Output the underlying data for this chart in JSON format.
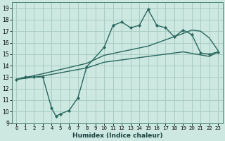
{
  "xlabel": "Humidex (Indice chaleur)",
  "xlim": [
    -0.5,
    23.5
  ],
  "ylim": [
    9,
    19.5
  ],
  "xticks": [
    0,
    1,
    2,
    3,
    4,
    5,
    6,
    7,
    8,
    9,
    10,
    11,
    12,
    13,
    14,
    15,
    16,
    17,
    18,
    19,
    20,
    21,
    22,
    23
  ],
  "yticks": [
    9,
    10,
    11,
    12,
    13,
    14,
    15,
    16,
    17,
    18,
    19
  ],
  "bg_color": "#cce8e0",
  "grid_color": "#a8ccc4",
  "line_color": "#2a6860",
  "line1_x": [
    0,
    1,
    2,
    3,
    4,
    4.5,
    5,
    6,
    7,
    8,
    10,
    11,
    12,
    13,
    14,
    15,
    16,
    17,
    18,
    19,
    20,
    21,
    22,
    23
  ],
  "line1_y": [
    12.8,
    13.0,
    13.0,
    13.0,
    10.3,
    9.6,
    9.8,
    10.1,
    11.2,
    13.9,
    15.6,
    17.5,
    17.8,
    17.3,
    17.5,
    18.9,
    17.5,
    17.3,
    16.5,
    17.1,
    16.7,
    15.1,
    15.0,
    15.2
  ],
  "line2_x": [
    0,
    3,
    8,
    10,
    15,
    19,
    20,
    21,
    22,
    23
  ],
  "line2_y": [
    12.8,
    13.3,
    14.2,
    14.9,
    15.7,
    16.8,
    17.1,
    17.0,
    16.4,
    15.3
  ],
  "line3_x": [
    0,
    3,
    8,
    10,
    15,
    19,
    22,
    23
  ],
  "line3_y": [
    12.8,
    13.1,
    13.8,
    14.3,
    14.8,
    15.2,
    14.8,
    15.2
  ]
}
